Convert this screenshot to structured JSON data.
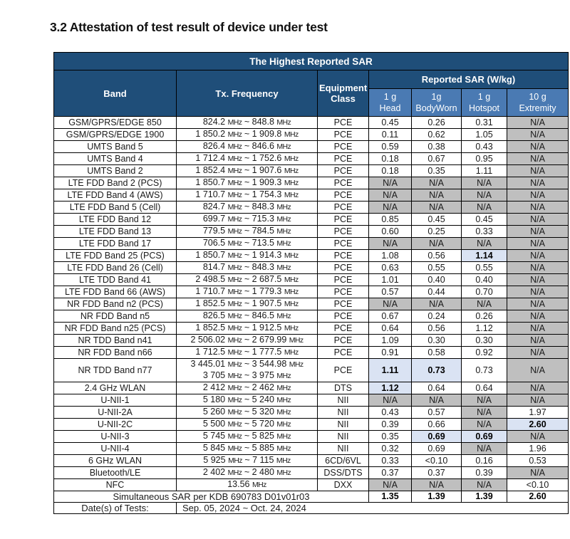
{
  "heading": "3.2 Attestation of test result of device under test",
  "colors": {
    "header_dark_blue": "#1F4E79",
    "header_light_blue": "#4A7AB3",
    "highlight_blue": "#DAE3F3",
    "na_gray": "#BFBFBF"
  },
  "table": {
    "title": "The Highest Reported SAR",
    "columns": {
      "band": "Band",
      "frequency": "Tx. Frequency",
      "equipment_class": "Equipment Class",
      "reported_sar": "Reported SAR (W/kg)",
      "sub": [
        [
          "1 g",
          "Head"
        ],
        [
          "1g",
          "BodyWorn"
        ],
        [
          "1 g",
          "Hotspot"
        ],
        [
          "10 g",
          "Extremity"
        ]
      ]
    },
    "rows": [
      {
        "band": "GSM/GPRS/EDGE 850",
        "freq": [
          "824.2 MHz ~ 848.8 MHz"
        ],
        "cls": "PCE",
        "sar": [
          {
            "v": "0.45",
            "s": "n"
          },
          {
            "v": "0.26",
            "s": "n"
          },
          {
            "v": "0.31",
            "s": "n"
          },
          {
            "v": "N/A",
            "s": "g"
          }
        ]
      },
      {
        "band": "GSM/GPRS/EDGE 1900",
        "freq": [
          "1 850.2 MHz ~ 1 909.8 MHz"
        ],
        "cls": "PCE",
        "sar": [
          {
            "v": "0.11",
            "s": "n"
          },
          {
            "v": "0.62",
            "s": "n"
          },
          {
            "v": "1.05",
            "s": "n"
          },
          {
            "v": "N/A",
            "s": "g"
          }
        ]
      },
      {
        "band": "UMTS Band 5",
        "freq": [
          "826.4 MHz ~ 846.6 MHz"
        ],
        "cls": "PCE",
        "sar": [
          {
            "v": "0.59",
            "s": "n"
          },
          {
            "v": "0.38",
            "s": "n"
          },
          {
            "v": "0.43",
            "s": "n"
          },
          {
            "v": "N/A",
            "s": "g"
          }
        ]
      },
      {
        "band": "UMTS Band 4",
        "freq": [
          "1 712.4 MHz ~ 1 752.6 MHz"
        ],
        "cls": "PCE",
        "sar": [
          {
            "v": "0.18",
            "s": "n"
          },
          {
            "v": "0.67",
            "s": "n"
          },
          {
            "v": "0.95",
            "s": "n"
          },
          {
            "v": "N/A",
            "s": "g"
          }
        ]
      },
      {
        "band": "UMTS Band 2",
        "freq": [
          "1 852.4 MHz ~ 1 907.6 MHz"
        ],
        "cls": "PCE",
        "sar": [
          {
            "v": "0.18",
            "s": "n"
          },
          {
            "v": "0.35",
            "s": "n"
          },
          {
            "v": "1.11",
            "s": "n"
          },
          {
            "v": "N/A",
            "s": "g"
          }
        ]
      },
      {
        "band": "LTE FDD Band 2 (PCS)",
        "freq": [
          "1 850.7 MHz ~ 1 909.3 MHz"
        ],
        "cls": "PCE",
        "sar": [
          {
            "v": "N/A",
            "s": "g"
          },
          {
            "v": "N/A",
            "s": "g"
          },
          {
            "v": "N/A",
            "s": "g"
          },
          {
            "v": "N/A",
            "s": "g"
          }
        ]
      },
      {
        "band": "LTE FDD Band 4 (AWS)",
        "freq": [
          "1 710.7 MHz ~ 1 754.3 MHz"
        ],
        "cls": "PCE",
        "sar": [
          {
            "v": "N/A",
            "s": "g"
          },
          {
            "v": "N/A",
            "s": "g"
          },
          {
            "v": "N/A",
            "s": "g"
          },
          {
            "v": "N/A",
            "s": "g"
          }
        ]
      },
      {
        "band": "LTE FDD Band 5 (Cell)",
        "freq": [
          "824.7 MHz ~ 848.3 MHz"
        ],
        "cls": "PCE",
        "sar": [
          {
            "v": "N/A",
            "s": "g"
          },
          {
            "v": "N/A",
            "s": "g"
          },
          {
            "v": "N/A",
            "s": "g"
          },
          {
            "v": "N/A",
            "s": "g"
          }
        ]
      },
      {
        "band": "LTE FDD Band 12",
        "freq": [
          "699.7 MHz ~ 715.3 MHz"
        ],
        "cls": "PCE",
        "sar": [
          {
            "v": "0.85",
            "s": "n"
          },
          {
            "v": "0.45",
            "s": "n"
          },
          {
            "v": "0.45",
            "s": "n"
          },
          {
            "v": "N/A",
            "s": "g"
          }
        ]
      },
      {
        "band": "LTE FDD Band 13",
        "freq": [
          "779.5 MHz ~ 784.5 MHz"
        ],
        "cls": "PCE",
        "sar": [
          {
            "v": "0.60",
            "s": "n"
          },
          {
            "v": "0.25",
            "s": "n"
          },
          {
            "v": "0.33",
            "s": "n"
          },
          {
            "v": "N/A",
            "s": "g"
          }
        ]
      },
      {
        "band": "LTE FDD Band 17",
        "freq": [
          "706.5 MHz ~ 713.5 MHz"
        ],
        "cls": "PCE",
        "sar": [
          {
            "v": "N/A",
            "s": "g"
          },
          {
            "v": "N/A",
            "s": "g"
          },
          {
            "v": "N/A",
            "s": "g"
          },
          {
            "v": "N/A",
            "s": "g"
          }
        ]
      },
      {
        "band": "LTE FDD Band 25 (PCS)",
        "freq": [
          "1 850.7 MHz ~ 1 914.3 MHz"
        ],
        "cls": "PCE",
        "sar": [
          {
            "v": "1.08",
            "s": "n"
          },
          {
            "v": "0.56",
            "s": "n"
          },
          {
            "v": "1.14",
            "s": "h"
          },
          {
            "v": "N/A",
            "s": "g"
          }
        ]
      },
      {
        "band": "LTE FDD Band 26 (Cell)",
        "freq": [
          "814.7 MHz ~ 848.3 MHz"
        ],
        "cls": "PCE",
        "sar": [
          {
            "v": "0.63",
            "s": "n"
          },
          {
            "v": "0.55",
            "s": "n"
          },
          {
            "v": "0.55",
            "s": "n"
          },
          {
            "v": "N/A",
            "s": "g"
          }
        ]
      },
      {
        "band": "LTE TDD Band 41",
        "freq": [
          "2 498.5 MHz ~ 2 687.5 MHz"
        ],
        "cls": "PCE",
        "sar": [
          {
            "v": "1.01",
            "s": "n"
          },
          {
            "v": "0.40",
            "s": "n"
          },
          {
            "v": "0.40",
            "s": "n"
          },
          {
            "v": "N/A",
            "s": "g"
          }
        ]
      },
      {
        "band": "LTE FDD Band 66 (AWS)",
        "freq": [
          "1 710.7 MHz ~ 1 779.3 MHz"
        ],
        "cls": "PCE",
        "sar": [
          {
            "v": "0.57",
            "s": "n"
          },
          {
            "v": "0.44",
            "s": "n"
          },
          {
            "v": "0.70",
            "s": "n"
          },
          {
            "v": "N/A",
            "s": "g"
          }
        ]
      },
      {
        "band": "NR FDD Band n2 (PCS)",
        "freq": [
          "1 852.5 MHz ~ 1 907.5 MHz"
        ],
        "cls": "PCE",
        "sar": [
          {
            "v": "N/A",
            "s": "g"
          },
          {
            "v": "N/A",
            "s": "g"
          },
          {
            "v": "N/A",
            "s": "g"
          },
          {
            "v": "N/A",
            "s": "g"
          }
        ]
      },
      {
        "band": "NR FDD Band n5",
        "freq": [
          "826.5 MHz ~ 846.5 MHz"
        ],
        "cls": "PCE",
        "sar": [
          {
            "v": "0.67",
            "s": "n"
          },
          {
            "v": "0.24",
            "s": "n"
          },
          {
            "v": "0.26",
            "s": "n"
          },
          {
            "v": "N/A",
            "s": "g"
          }
        ]
      },
      {
        "band": "NR FDD Band n25 (PCS)",
        "freq": [
          "1 852.5 MHz ~ 1 912.5 MHz"
        ],
        "cls": "PCE",
        "sar": [
          {
            "v": "0.64",
            "s": "n"
          },
          {
            "v": "0.56",
            "s": "n"
          },
          {
            "v": "1.12",
            "s": "n"
          },
          {
            "v": "N/A",
            "s": "g"
          }
        ]
      },
      {
        "band": "NR TDD Band n41",
        "freq": [
          "2 506.02 MHz ~ 2 679.99 MHz"
        ],
        "cls": "PCE",
        "sar": [
          {
            "v": "1.09",
            "s": "n"
          },
          {
            "v": "0.30",
            "s": "n"
          },
          {
            "v": "0.30",
            "s": "n"
          },
          {
            "v": "N/A",
            "s": "g"
          }
        ]
      },
      {
        "band": "NR FDD Band n66",
        "freq": [
          "1 712.5 MHz ~ 1 777.5 MHz"
        ],
        "cls": "PCE",
        "sar": [
          {
            "v": "0.91",
            "s": "n"
          },
          {
            "v": "0.58",
            "s": "n"
          },
          {
            "v": "0.92",
            "s": "n"
          },
          {
            "v": "N/A",
            "s": "g"
          }
        ]
      },
      {
        "band": "NR TDD Band n77",
        "freq": [
          "3 445.01 MHz ~ 3 544.98 MHz",
          "3 705 MHz ~ 3 975 MHz"
        ],
        "cls": "PCE",
        "tall": true,
        "sar": [
          {
            "v": "1.11",
            "s": "h"
          },
          {
            "v": "0.73",
            "s": "h"
          },
          {
            "v": "0.73",
            "s": "n"
          },
          {
            "v": "N/A",
            "s": "g"
          }
        ]
      },
      {
        "band": "2.4 GHz WLAN",
        "freq": [
          "2 412 MHz ~ 2 462 MHz"
        ],
        "cls": "DTS",
        "sar": [
          {
            "v": "1.12",
            "s": "h"
          },
          {
            "v": "0.64",
            "s": "n"
          },
          {
            "v": "0.64",
            "s": "n"
          },
          {
            "v": "N/A",
            "s": "g"
          }
        ]
      },
      {
        "band": "U-NII-1",
        "freq": [
          "5 180 MHz ~ 5 240 MHz"
        ],
        "cls": "NII",
        "sar": [
          {
            "v": "N/A",
            "s": "g"
          },
          {
            "v": "N/A",
            "s": "g"
          },
          {
            "v": "N/A",
            "s": "g"
          },
          {
            "v": "N/A",
            "s": "g"
          }
        ]
      },
      {
        "band": "U-NII-2A",
        "freq": [
          "5 260 MHz ~ 5 320 MHz"
        ],
        "cls": "NII",
        "sar": [
          {
            "v": "0.43",
            "s": "n"
          },
          {
            "v": "0.57",
            "s": "n"
          },
          {
            "v": "N/A",
            "s": "g"
          },
          {
            "v": "1.97",
            "s": "n"
          }
        ]
      },
      {
        "band": "U-NII-2C",
        "freq": [
          "5 500 MHz ~ 5 720 MHz"
        ],
        "cls": "NII",
        "sar": [
          {
            "v": "0.39",
            "s": "n"
          },
          {
            "v": "0.66",
            "s": "n"
          },
          {
            "v": "N/A",
            "s": "g"
          },
          {
            "v": "2.60",
            "s": "h"
          }
        ]
      },
      {
        "band": "U-NII-3",
        "freq": [
          "5 745 MHz ~ 5 825 MHz"
        ],
        "cls": "NII",
        "sar": [
          {
            "v": "0.35",
            "s": "n"
          },
          {
            "v": "0.69",
            "s": "h"
          },
          {
            "v": "0.69",
            "s": "h"
          },
          {
            "v": "N/A",
            "s": "g"
          }
        ]
      },
      {
        "band": "U-NII-4",
        "freq": [
          "5 845 MHz ~ 5 885 MHz"
        ],
        "cls": "NII",
        "sar": [
          {
            "v": "0.32",
            "s": "n"
          },
          {
            "v": "0.69",
            "s": "n"
          },
          {
            "v": "N/A",
            "s": "g"
          },
          {
            "v": "1.96",
            "s": "n"
          }
        ]
      },
      {
        "band": "6 GHz WLAN",
        "freq": [
          "5 925 MHz ~ 7 115 MHz"
        ],
        "cls": "6CD/6VL",
        "sar": [
          {
            "v": "0.33",
            "s": "n"
          },
          {
            "v": "<0.10",
            "s": "n"
          },
          {
            "v": "0.16",
            "s": "n"
          },
          {
            "v": "0.53",
            "s": "n"
          }
        ]
      },
      {
        "band": "Bluetooth/LE",
        "freq": [
          "2 402 MHz ~ 2 480 MHz"
        ],
        "cls": "DSS/DTS",
        "sar": [
          {
            "v": "0.37",
            "s": "n"
          },
          {
            "v": "0.37",
            "s": "n"
          },
          {
            "v": "0.39",
            "s": "n"
          },
          {
            "v": "N/A",
            "s": "g"
          }
        ]
      },
      {
        "band": "NFC",
        "freq": [
          "13.56 MHz"
        ],
        "cls": "DXX",
        "sar": [
          {
            "v": "N/A",
            "s": "g"
          },
          {
            "v": "N/A",
            "s": "g"
          },
          {
            "v": "N/A",
            "s": "g"
          },
          {
            "v": "<0.10",
            "s": "n"
          }
        ]
      }
    ],
    "simultaneous": {
      "label": "Simultaneous SAR per KDB 690783 D01v01r03",
      "values": [
        "1.35",
        "1.39",
        "1.39",
        "2.60"
      ]
    },
    "dates": {
      "label": "Date(s) of Tests:",
      "value": "Sep. 05, 2024 ~ Oct. 24, 2024"
    }
  }
}
